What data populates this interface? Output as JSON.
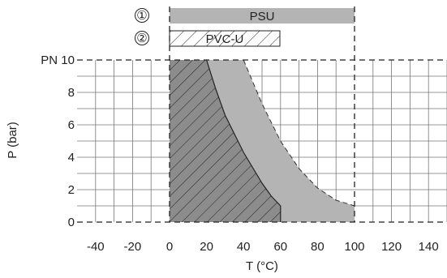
{
  "chart_data": {
    "type": "area",
    "xlabel": "T (°C)",
    "ylabel": "P (bar)",
    "xlim": [
      -50,
      150
    ],
    "ylim": [
      0,
      10
    ],
    "x_ticks": [
      -40,
      -20,
      0,
      20,
      40,
      60,
      80,
      100,
      120,
      140
    ],
    "y_ticks": [
      {
        "value": 0,
        "label": "0"
      },
      {
        "value": 2,
        "label": "2"
      },
      {
        "value": 4,
        "label": "4"
      },
      {
        "value": 6,
        "label": "6"
      },
      {
        "value": 8,
        "label": "8"
      },
      {
        "value": 10,
        "label": "PN 10"
      }
    ],
    "grid": true,
    "series": [
      {
        "name": "PSU",
        "marker": "①",
        "color": "#b4b4b4",
        "range": [
          0,
          100
        ],
        "points": [
          [
            0,
            10
          ],
          [
            40,
            10
          ],
          [
            50,
            7.3
          ],
          [
            60,
            5.0
          ],
          [
            70,
            3.3
          ],
          [
            80,
            2.1
          ],
          [
            90,
            1.35
          ],
          [
            100,
            1.0
          ],
          [
            100,
            0
          ]
        ]
      },
      {
        "name": "PVC-U",
        "marker": "②",
        "color": "#8c8c8c",
        "range": [
          0,
          60
        ],
        "points": [
          [
            0,
            10
          ],
          [
            20,
            10
          ],
          [
            25,
            8.2
          ],
          [
            30,
            6.6
          ],
          [
            40,
            4.3
          ],
          [
            50,
            2.4
          ],
          [
            55,
            1.6
          ],
          [
            60,
            1.0
          ],
          [
            60,
            0
          ]
        ]
      }
    ]
  }
}
